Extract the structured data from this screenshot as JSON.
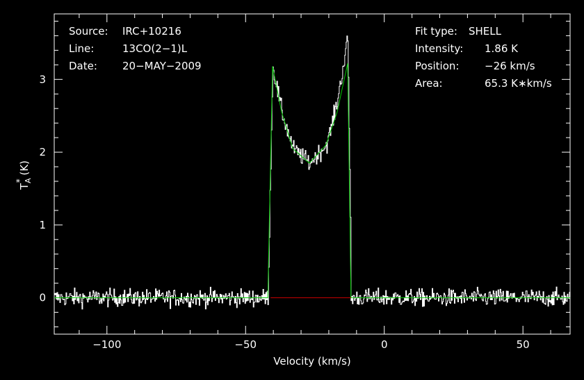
{
  "chart_data": {
    "type": "line",
    "xlabel": "Velocity (km/s)",
    "ylabel_main": "T",
    "ylabel_sub": "A",
    "ylabel_sup": "*",
    "ylabel_unit": " (K)",
    "xlim": [
      -119,
      67
    ],
    "ylim": [
      -0.5,
      3.9
    ],
    "x_ticks": [
      -100,
      -50,
      0,
      50
    ],
    "x_tick_labels": [
      "−100",
      "−50",
      "0",
      "50"
    ],
    "y_ticks": [
      0,
      1,
      2,
      3
    ],
    "y_tick_labels": [
      "0",
      "1",
      "2",
      "3"
    ],
    "grid": false,
    "annotations_left": [
      {
        "key": "Source:",
        "value": "IRC+10216"
      },
      {
        "key": "Line:",
        "value": "13CO(2−1)L"
      },
      {
        "key": "Date:",
        "value": "20−MAY−2009"
      }
    ],
    "annotations_right": [
      {
        "key": "Fit type:",
        "value": "SHELL"
      },
      {
        "key": "Intensity:",
        "value": "1.86 K"
      },
      {
        "key": "Position:",
        "value": "−26 km/s"
      },
      {
        "key": "Area:",
        "value": "65.3 K∗km/s"
      }
    ],
    "spectrum": {
      "channel_width": 0.25,
      "noise_rms": 0.085,
      "line_edges": [
        -41.5,
        -12
      ],
      "peaks": [
        {
          "x": -40.3,
          "y": 3.1
        },
        {
          "x": -14,
          "y": 3.62
        }
      ],
      "trough": {
        "x": -27,
        "y": 1.85
      },
      "color": "#ffffff"
    },
    "fit": {
      "x": [
        -119,
        -42.0,
        -40.3,
        -37,
        -33,
        -27,
        -21,
        -17,
        -13.2,
        -12.0,
        67
      ],
      "y": [
        0,
        0,
        3.18,
        2.55,
        2.05,
        1.85,
        2.1,
        2.55,
        3.22,
        0,
        0
      ],
      "color": "#00cc00"
    },
    "baseline": {
      "x": [
        -41,
        -12
      ],
      "y": 0,
      "color": "#cc0000"
    }
  }
}
